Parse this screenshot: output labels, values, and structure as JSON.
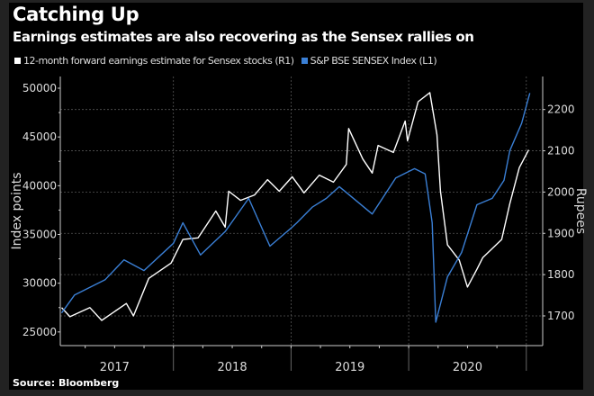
{
  "title": "Catching Up",
  "subtitle": "Earnings estimates are also recovering as the Sensex rallies on",
  "source": "Source: Bloomberg",
  "chart_data": {
    "type": "line",
    "title": "Catching Up",
    "subtitle": "Earnings estimates are also recovering as the Sensex rallies on",
    "xlabel": "",
    "x_ticks": [
      "2017",
      "2018",
      "2019",
      "2020"
    ],
    "xlim": [
      2017.0,
      2021.1
    ],
    "y_left": {
      "label": "Index points",
      "ticks": [
        25000,
        30000,
        35000,
        40000,
        45000,
        50000
      ],
      "lim": [
        23600,
        51200
      ]
    },
    "y_right": {
      "label": "Rupees",
      "ticks": [
        1700,
        1800,
        1900,
        2000,
        2100,
        2200
      ],
      "lim": [
        1628,
        2280
      ]
    },
    "grid": true,
    "legend_position": "top-left",
    "series": [
      {
        "name": "12-month forward earnings estimate for Sensex stocks (R1)",
        "axis": "right",
        "color": "#ffffff",
        "x": [
          2017.05,
          2017.12,
          2017.29,
          2017.39,
          2017.6,
          2017.66,
          2017.79,
          2017.98,
          2018.08,
          2018.21,
          2018.36,
          2018.44,
          2018.47,
          2018.57,
          2018.69,
          2018.8,
          2018.9,
          2019.01,
          2019.11,
          2019.24,
          2019.36,
          2019.47,
          2019.49,
          2019.61,
          2019.69,
          2019.74,
          2019.87,
          2019.97,
          2019.99,
          2020.08,
          2020.18,
          2020.24,
          2020.27,
          2020.33,
          2020.43,
          2020.5,
          2020.58,
          2020.63,
          2020.79,
          2020.86,
          2020.94,
          2021.02
        ],
        "values": [
          1720,
          1698,
          1720,
          1689,
          1730,
          1700,
          1791,
          1828,
          1885,
          1889,
          1954,
          1915,
          2002,
          1980,
          1993,
          2030,
          2002,
          2037,
          1998,
          2041,
          2024,
          2067,
          2154,
          2080,
          2046,
          2113,
          2096,
          2172,
          2124,
          2219,
          2241,
          2139,
          2002,
          1872,
          1835,
          1770,
          1813,
          1841,
          1885,
          1972,
          2059,
          2102
        ]
      },
      {
        "name": "S&P BSE SENSEX Index (L1)",
        "axis": "left",
        "color": "#3a7fd5",
        "x": [
          2017.05,
          2017.16,
          2017.42,
          2017.58,
          2017.75,
          2018.0,
          2018.08,
          2018.23,
          2018.44,
          2018.64,
          2018.82,
          2019.0,
          2019.05,
          2019.18,
          2019.3,
          2019.41,
          2019.69,
          2019.89,
          2020.05,
          2020.14,
          2020.2,
          2020.23,
          2020.33,
          2020.45,
          2020.58,
          2020.71,
          2020.81,
          2020.86,
          2020.96,
          2021.03
        ],
        "values": [
          26950,
          28800,
          30370,
          32400,
          31300,
          34100,
          36200,
          32900,
          35300,
          38700,
          33800,
          35650,
          36200,
          37800,
          38700,
          39900,
          37100,
          40800,
          41750,
          41200,
          36200,
          26000,
          30650,
          33150,
          38050,
          38700,
          40550,
          43600,
          46400,
          49500
        ]
      }
    ]
  }
}
